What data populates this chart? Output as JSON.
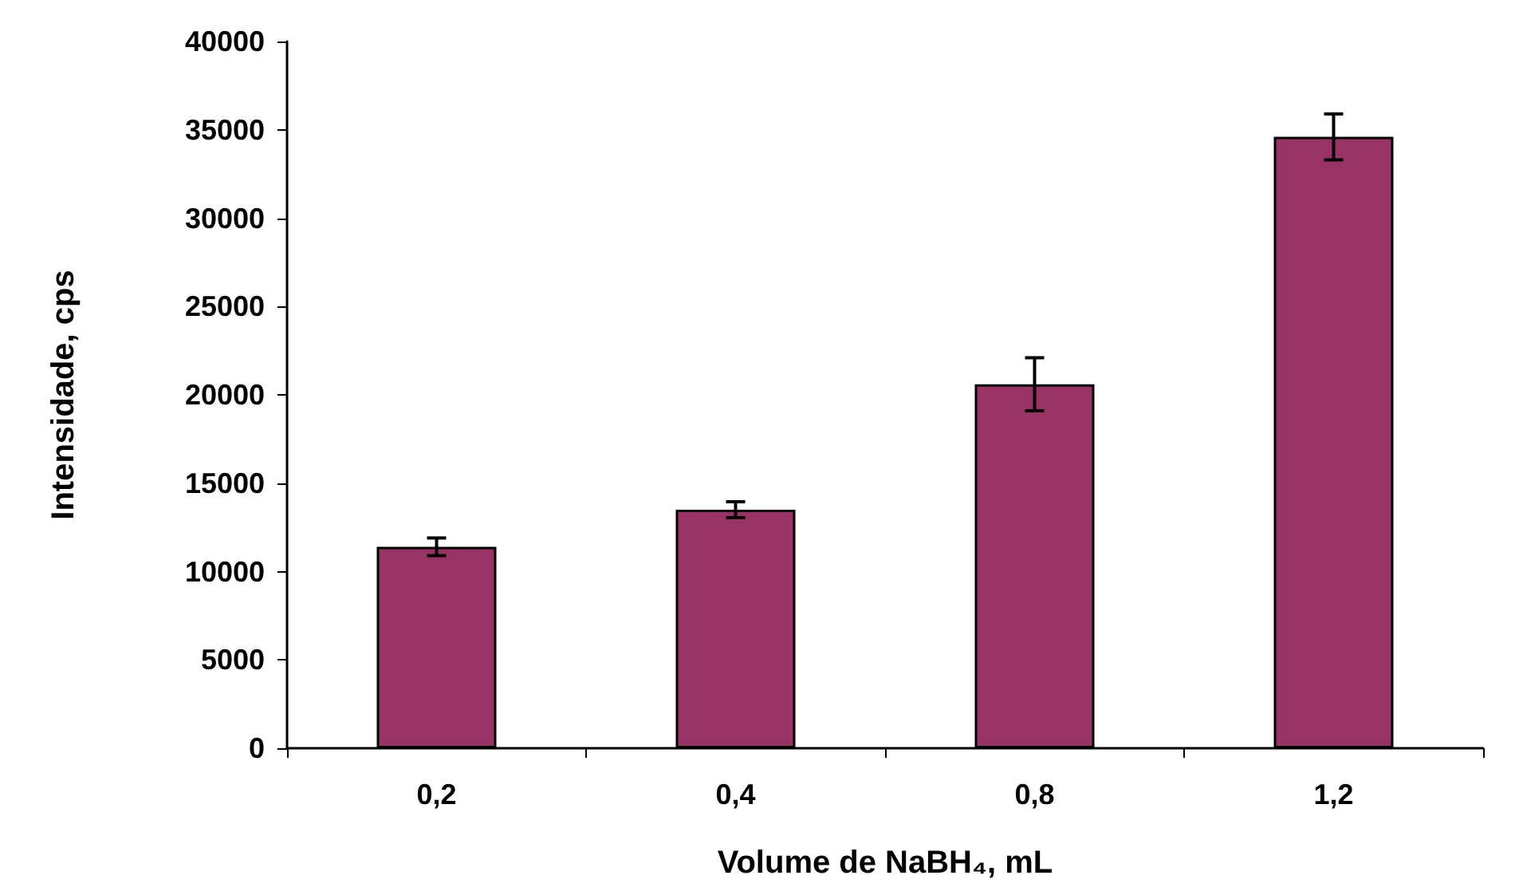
{
  "chart_data": {
    "type": "bar",
    "xlabel": "Volume de NaBH₄, mL",
    "ylabel": "Intensidade, cps",
    "categories": [
      "0,2",
      "0,4",
      "0,8",
      "1,2"
    ],
    "series": [
      {
        "color": "#993366",
        "values": [
          11400,
          13500,
          20600,
          34600
        ],
        "errors": [
          500,
          450,
          1500,
          1300
        ]
      }
    ],
    "ylim": [
      0,
      40000
    ],
    "yticks": [
      0,
      5000,
      10000,
      15000,
      20000,
      25000,
      30000,
      35000,
      40000
    ],
    "grid": false
  }
}
